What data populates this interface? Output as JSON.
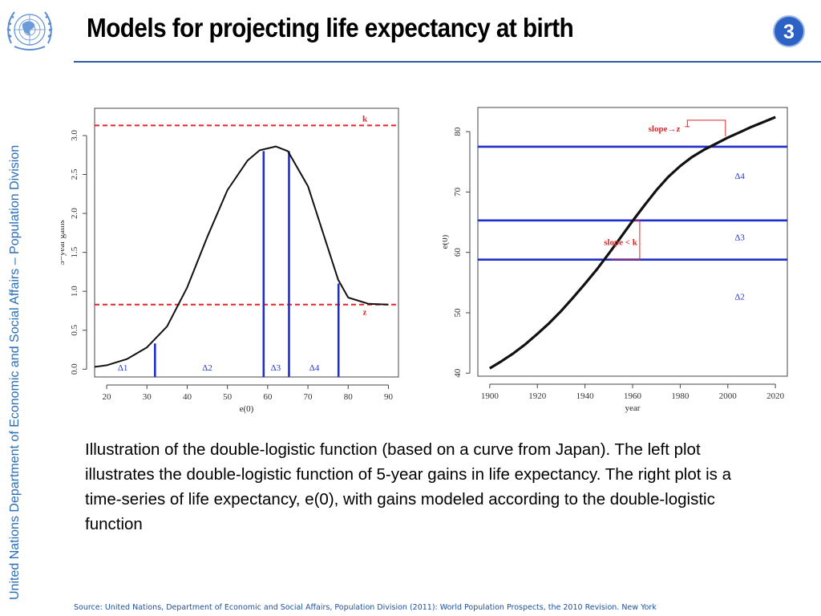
{
  "slide": {
    "title": "Models for projecting life expectancy at birth",
    "number": "3",
    "side_text": "United Nations Department of Economic and Social Affairs – Population Division",
    "caption": "Illustration of the double-logistic function (based on a curve from Japan). The left plot illustrates the double-logistic function of 5-year gains in life expectancy. The right plot is a time-series of life expectancy, e(0), with gains modeled according to the double-logistic function",
    "source": "Source: United Nations, Department of Economic and Social Affairs, Population Division (2011): World Population Prospects, the 2010 Revision. New York",
    "colors": {
      "accent": "#2a5ba8",
      "red": "#d8262b",
      "blue": "#1f2ecc",
      "badge": "#2b62c4"
    }
  },
  "chart_data": [
    {
      "type": "line",
      "xlabel": "e(0)",
      "ylabel": "5−year gains",
      "xlim": [
        17,
        92.5
      ],
      "ylim": [
        -0.1,
        3.35
      ],
      "xticks": [
        20,
        30,
        40,
        50,
        60,
        70,
        80,
        90
      ],
      "yticks": [
        0.0,
        0.5,
        1.0,
        1.5,
        2.0,
        2.5,
        3.0
      ],
      "series": [
        {
          "x": [
            17,
            20,
            25,
            30,
            35,
            40,
            45,
            50,
            55,
            58,
            62,
            65,
            70,
            75,
            77.5,
            80,
            85,
            90
          ],
          "y": [
            0.03,
            0.05,
            0.13,
            0.28,
            0.55,
            1.05,
            1.7,
            2.3,
            2.68,
            2.81,
            2.86,
            2.8,
            2.35,
            1.55,
            1.15,
            0.92,
            0.84,
            0.83
          ]
        }
      ],
      "hlines": [
        {
          "y": 3.13,
          "label": "k"
        },
        {
          "y": 0.83,
          "label": "z"
        }
      ],
      "vlines": [
        {
          "x": 32,
          "y": 0.33
        },
        {
          "x": 59,
          "y": 2.8
        },
        {
          "x": 65.3,
          "y": 2.8
        },
        {
          "x": 77.6,
          "y": 1.1
        }
      ],
      "annotations": [
        {
          "text": "Δ1",
          "x": 24,
          "y": -0.02
        },
        {
          "text": "Δ2",
          "x": 45,
          "y": -0.02
        },
        {
          "text": "Δ3",
          "x": 62,
          "y": -0.02
        },
        {
          "text": "Δ4",
          "x": 71.6,
          "y": -0.02
        }
      ]
    },
    {
      "type": "line",
      "xlabel": "year",
      "ylabel": "e(0)",
      "xlim": [
        1895,
        2025
      ],
      "ylim": [
        39.5,
        84
      ],
      "xticks": [
        1900,
        1920,
        1940,
        1960,
        1980,
        2000,
        2020
      ],
      "yticks": [
        40,
        50,
        60,
        70,
        80
      ],
      "series": [
        {
          "x": [
            1900,
            1905,
            1910,
            1915,
            1920,
            1925,
            1930,
            1935,
            1940,
            1945,
            1950,
            1955,
            1960,
            1965,
            1970,
            1975,
            1980,
            1985,
            1990,
            1995,
            2000,
            2005,
            2010,
            2015,
            2020
          ],
          "y": [
            40.8,
            42.0,
            43.3,
            44.8,
            46.5,
            48.3,
            50.3,
            52.5,
            54.8,
            57.2,
            59.8,
            62.5,
            65.2,
            67.8,
            70.3,
            72.5,
            74.3,
            75.8,
            77.0,
            78.0,
            79.0,
            79.9,
            80.8,
            81.6,
            82.4
          ]
        }
      ],
      "hlines": [
        {
          "y": 77.5
        },
        {
          "y": 65.3
        },
        {
          "y": 58.8
        }
      ],
      "annotations": [
        {
          "text": "slope→z",
          "x": 1980,
          "y": 80
        },
        {
          "text": "slope < k",
          "x": 1962,
          "y": 61.2
        },
        {
          "text": "Δ4",
          "x": 2005,
          "y": 72.2
        },
        {
          "text": "Δ3",
          "x": 2005,
          "y": 62
        },
        {
          "text": "Δ2",
          "x": 2005,
          "y": 52.2
        }
      ]
    }
  ]
}
